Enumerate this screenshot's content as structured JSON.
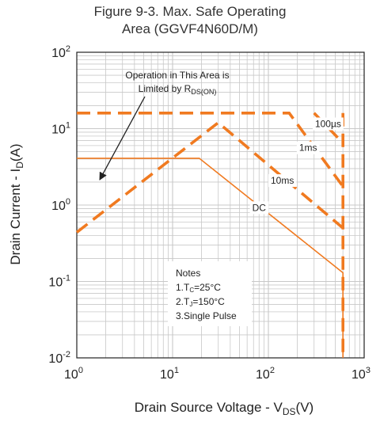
{
  "chart_data": {
    "type": "line",
    "title_lines": [
      "Figure 9-3. Max. Safe Operating",
      "Area (GGVF4N60D/M)"
    ],
    "xlabel": {
      "main": "Drain Source Voltage - V",
      "sub": "DS",
      "tail": "(V)"
    },
    "ylabel": {
      "main": "Drain Current - I",
      "sub": "D",
      "tail": "(A)"
    },
    "x_scale": "log",
    "y_scale": "log",
    "xlim": [
      1,
      1000
    ],
    "ylim": [
      0.01,
      100
    ],
    "x_ticks": [
      {
        "value": 1,
        "base": "10",
        "exp": "0"
      },
      {
        "value": 10,
        "base": "10",
        "exp": "1"
      },
      {
        "value": 100,
        "base": "10",
        "exp": "2"
      },
      {
        "value": 1000,
        "base": "10",
        "exp": "3"
      }
    ],
    "y_ticks": [
      {
        "value": 100,
        "base": "10",
        "exp": "2"
      },
      {
        "value": 10,
        "base": "10",
        "exp": "1"
      },
      {
        "value": 1,
        "base": "10",
        "exp": "0"
      },
      {
        "value": 0.1,
        "base": "10",
        "exp": "-1"
      },
      {
        "value": 0.01,
        "base": "10",
        "exp": "-2"
      }
    ],
    "grid": true,
    "series": [
      {
        "name": "DC",
        "style": "solid",
        "points": [
          [
            1,
            4.1
          ],
          [
            19,
            4.1
          ],
          [
            600,
            0.13
          ],
          [
            600,
            0.01
          ]
        ]
      },
      {
        "name": "10ms",
        "style": "dashed",
        "points": [
          [
            1,
            0.44
          ],
          [
            30,
            12
          ],
          [
            600,
            0.5
          ],
          [
            600,
            0.01
          ]
        ]
      },
      {
        "name": "1ms",
        "style": "dashed",
        "points": [
          [
            1,
            16
          ],
          [
            165,
            16
          ],
          [
            600,
            1.75
          ]
        ]
      },
      {
        "name": "100µs",
        "style": "dashed",
        "points": [
          [
            300,
            16
          ],
          [
            600,
            6.5
          ]
        ]
      },
      {
        "name": "",
        "style": "dashed",
        "points": [
          [
            600,
            16
          ],
          [
            600,
            0.45
          ]
        ]
      }
    ],
    "series_labels": [
      {
        "series": "100µs",
        "text": "100µs"
      },
      {
        "series": "1ms",
        "text": "1ms"
      },
      {
        "series": "10ms",
        "text": "10ms"
      },
      {
        "series": "DC",
        "text": "DC"
      }
    ],
    "annotation": {
      "lines": [
        "Operation in This Area is",
        "Limited by R"
      ],
      "sub": "DS(ON)"
    },
    "notes": {
      "title": "Notes",
      "items": [
        {
          "prefix": "1.T",
          "sub": "C",
          "tail": "=25°C"
        },
        {
          "prefix": "2.T",
          "sub": "J",
          "tail": "=150°C"
        },
        {
          "prefix": "3.Single Pulse",
          "sub": "",
          "tail": ""
        }
      ]
    },
    "colors": {
      "series": "#f07a20",
      "grid": "#c8c8c8",
      "frame": "#222222"
    }
  }
}
